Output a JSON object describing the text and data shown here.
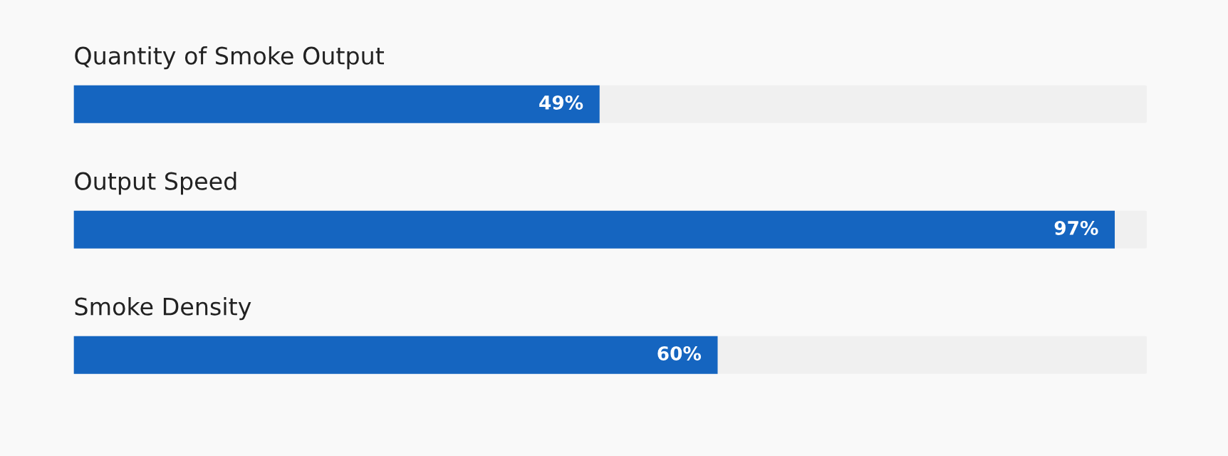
{
  "chart_data": {
    "type": "bar",
    "orientation": "horizontal",
    "categories": [
      "Quantity of Smoke Output",
      "Output Speed",
      "Smoke Density"
    ],
    "values": [
      49,
      97,
      60
    ],
    "value_labels": [
      "49%",
      "97%",
      "60%"
    ],
    "color": "#1565c0",
    "xlim": [
      0,
      100
    ]
  }
}
